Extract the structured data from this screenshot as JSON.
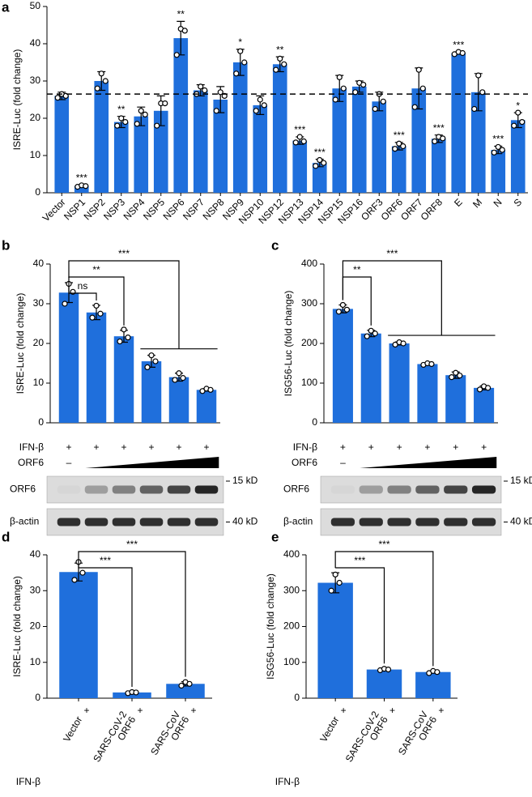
{
  "chart_data": [
    {
      "type": "bar",
      "panel": "a",
      "y_label": "ISRE-Luc (fold change)",
      "color": "#1f6fdc",
      "categories": [
        "Vector",
        "NSP1",
        "NSP2",
        "NSP3",
        "NSP4",
        "NSP5",
        "NSP6",
        "NSP7",
        "NSP8",
        "NSP9",
        "NSP10",
        "NSP12",
        "NSP13",
        "NSP14",
        "NSP15",
        "NSP16",
        "ORF3",
        "ORF6",
        "ORF7",
        "ORF8",
        "E",
        "M",
        "N",
        "S"
      ],
      "values": [
        26,
        1.8,
        30,
        19,
        20.5,
        22,
        41.5,
        27.5,
        25,
        35,
        23.5,
        34.5,
        14,
        8,
        28,
        28.5,
        24.5,
        12.5,
        28,
        14.5,
        37.5,
        27,
        11.5,
        19.5
      ],
      "errors": [
        1,
        0.3,
        2.5,
        1.5,
        2.5,
        4,
        4.5,
        1.5,
        3.5,
        3.5,
        2.5,
        2,
        1,
        1,
        3.5,
        1.5,
        2.5,
        1,
        5.5,
        1,
        0.3,
        5,
        1,
        2
      ],
      "points": [
        [
          25.5,
          26.5,
          26
        ],
        [
          1.6,
          2,
          1.8
        ],
        [
          28,
          32,
          30
        ],
        [
          18,
          20,
          19
        ],
        [
          18.5,
          22,
          21
        ],
        [
          18,
          24,
          24
        ],
        [
          37,
          44,
          43.5
        ],
        [
          26.5,
          28.5,
          27.5
        ],
        [
          22,
          27,
          26
        ],
        [
          32,
          38,
          35
        ],
        [
          22,
          25,
          23.5
        ],
        [
          33,
          36,
          34.5
        ],
        [
          13.5,
          15,
          13.8
        ],
        [
          7.2,
          8.8,
          8
        ],
        [
          25,
          31,
          28
        ],
        [
          27,
          29.5,
          29
        ],
        [
          22.5,
          26.5,
          24.5
        ],
        [
          11.8,
          13.2,
          12.5
        ],
        [
          23,
          33,
          28
        ],
        [
          13.8,
          15,
          14.6
        ],
        [
          37.2,
          37.8,
          37.5
        ],
        [
          22.5,
          31.5,
          27
        ],
        [
          10.8,
          12.3,
          11.5
        ],
        [
          18,
          21.5,
          19
        ]
      ],
      "significance": [
        null,
        "***",
        null,
        "**",
        null,
        null,
        "**",
        null,
        null,
        "*",
        null,
        "**",
        "***",
        "***",
        null,
        null,
        null,
        "***",
        null,
        "***",
        "***",
        null,
        "***",
        "*"
      ],
      "reference_line": 26.5,
      "ylim": [
        0,
        50
      ],
      "yticks": [
        0,
        10,
        20,
        30,
        40,
        50
      ]
    },
    {
      "type": "bar",
      "panel": "b",
      "y_label": "ISRE-Luc (fold change)",
      "color": "#1f6fdc",
      "values": [
        32.8,
        27.8,
        21.8,
        15.5,
        11.5,
        8.3
      ],
      "errors": [
        2.5,
        1.8,
        1.5,
        1.5,
        1,
        0.3
      ],
      "points": [
        [
          30,
          35,
          33
        ],
        [
          26.5,
          29.5,
          27.5
        ],
        [
          20.5,
          23.5,
          21.5
        ],
        [
          14,
          17,
          15.5
        ],
        [
          10.8,
          12.5,
          11.3
        ],
        [
          8,
          8.6,
          8.3
        ]
      ],
      "brackets": [
        {
          "from": 0,
          "to": [
            1,
            1
          ],
          "label": "ns"
        },
        {
          "from": 0,
          "to": [
            2,
            2
          ],
          "label": "**"
        },
        {
          "from": 0,
          "to": [
            3,
            5
          ],
          "label": "***"
        }
      ],
      "treatments": [
        {
          "label": "IFN-β",
          "marks": [
            "+",
            "+",
            "+",
            "+",
            "+",
            "+"
          ]
        },
        {
          "label": "ORF6",
          "marks": [
            "–"
          ]
        }
      ],
      "blots": [
        {
          "label": "ORF6",
          "size": "15 kD"
        },
        {
          "label": "β-actin",
          "size": "40 kD"
        }
      ],
      "ylim": [
        0,
        40
      ],
      "yticks": [
        0,
        10,
        20,
        30,
        40
      ]
    },
    {
      "type": "bar",
      "panel": "c",
      "y_label": "ISG56-Luc (fold change)",
      "color": "#1f6fdc",
      "values": [
        287,
        225,
        200,
        148,
        120,
        88
      ],
      "errors": [
        10,
        8,
        4,
        3,
        8,
        5
      ],
      "points": [
        [
          280,
          297,
          285
        ],
        [
          218,
          232,
          225
        ],
        [
          197,
          203,
          200
        ],
        [
          146,
          150,
          148
        ],
        [
          115,
          126,
          119
        ],
        [
          84,
          92,
          88
        ]
      ],
      "brackets": [
        {
          "from": 0,
          "to": [
            1,
            1
          ],
          "label": "**"
        },
        {
          "from": 0,
          "to": [
            2,
            5
          ],
          "label": "***"
        }
      ],
      "treatments": [
        {
          "label": "IFN-β",
          "marks": [
            "+",
            "+",
            "+",
            "+",
            "+",
            "+"
          ]
        },
        {
          "label": "ORF6",
          "marks": [
            "–"
          ]
        }
      ],
      "blots": [
        {
          "label": "ORF6",
          "size": "15 kD"
        },
        {
          "label": "β-actin",
          "size": "40 kD"
        }
      ],
      "ylim": [
        0,
        400
      ],
      "yticks": [
        0,
        100,
        200,
        300,
        400
      ]
    },
    {
      "type": "bar",
      "panel": "d",
      "y_label": "ISRE-Luc (fold change)",
      "color": "#1f6fdc",
      "categories": [
        [
          "Vector"
        ],
        [
          "SARS-CoV-2",
          "ORF6"
        ],
        [
          "SARS-CoV",
          "ORF6"
        ]
      ],
      "values": [
        35.2,
        1.6,
        4
      ],
      "errors": [
        2.5,
        0.2,
        0.6
      ],
      "points": [
        [
          33,
          38,
          35
        ],
        [
          1.4,
          1.7,
          1.6
        ],
        [
          3.5,
          4.5,
          4
        ]
      ],
      "brackets": [
        {
          "from": 0,
          "to": [
            1,
            1
          ],
          "label": "***"
        },
        {
          "from": 0,
          "to": [
            2,
            2
          ],
          "label": "***"
        }
      ],
      "treatments": [
        {
          "label": "IFN-β",
          "marks": [
            "+",
            "+",
            "+"
          ]
        }
      ],
      "ylim": [
        0,
        40
      ],
      "yticks": [
        0,
        10,
        20,
        30,
        40
      ]
    },
    {
      "type": "bar",
      "panel": "e",
      "y_label": "ISG56-Luc (fold change)",
      "color": "#1f6fdc",
      "categories": [
        [
          "Vector"
        ],
        [
          "SARS-CoV-2",
          "ORF6"
        ],
        [
          "SARS-CoV",
          "ORF6"
        ]
      ],
      "values": [
        322,
        80,
        73
      ],
      "errors": [
        28,
        3,
        3
      ],
      "points": [
        [
          300,
          345,
          322
        ],
        [
          78,
          82,
          80
        ],
        [
          70,
          76,
          73
        ]
      ],
      "brackets": [
        {
          "from": 0,
          "to": [
            1,
            1
          ],
          "label": "***"
        },
        {
          "from": 0,
          "to": [
            2,
            2
          ],
          "label": "***"
        }
      ],
      "treatments": [
        {
          "label": "IFN-β",
          "marks": [
            "+",
            "+",
            "+"
          ]
        }
      ],
      "ylim": [
        0,
        400
      ],
      "yticks": [
        0,
        100,
        200,
        300,
        400
      ]
    }
  ]
}
